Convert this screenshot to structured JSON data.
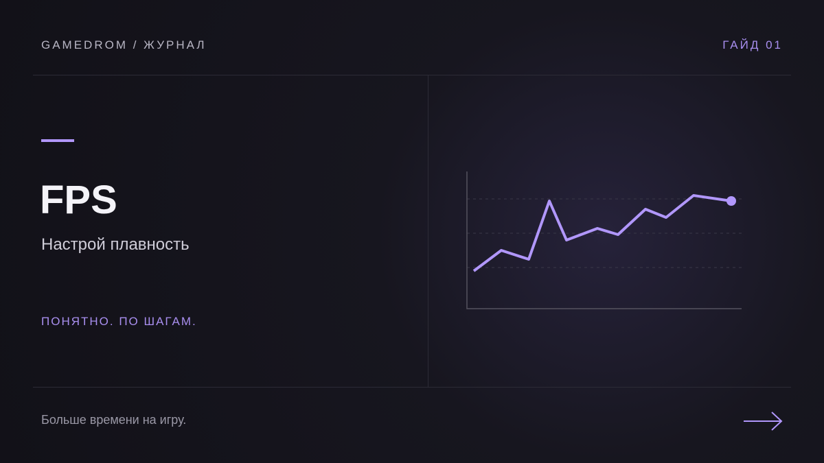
{
  "header": {
    "brand": "GAMEDROM / ЖУРНАЛ",
    "guide": "ГАЙД 01"
  },
  "hero": {
    "title": "FPS",
    "subtitle": "Настрой плавность",
    "tagline": "ПОНЯТНО. ПО ШАГАМ."
  },
  "footer": {
    "text": "Больше времени на игру."
  },
  "chart_data": {
    "type": "line",
    "color": "#b197fc",
    "x": [
      10,
      50,
      90,
      120,
      145,
      190,
      220,
      260,
      290,
      330,
      385
    ],
    "values": [
      1.1,
      1.7,
      1.44,
      3.14,
      2.0,
      2.34,
      2.16,
      2.9,
      2.66,
      3.3,
      3.14
    ],
    "xlim": [
      0,
      400
    ],
    "ylim": [
      0,
      4
    ],
    "yticks": [
      1.2,
      2.2,
      3.2
    ],
    "grid": true
  }
}
